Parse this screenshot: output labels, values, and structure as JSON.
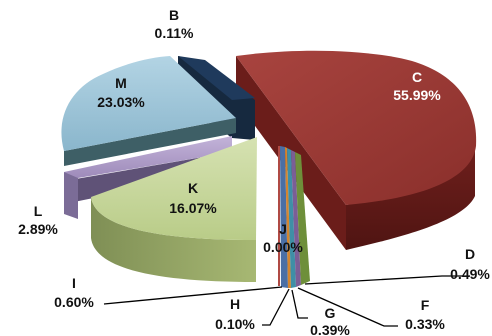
{
  "chart_data": {
    "type": "pie",
    "title": "",
    "style": "3d-exploded",
    "legend": "none",
    "slices": [
      {
        "label": "B",
        "value": 0.11,
        "value_text": "0.11%",
        "color": "#1f3a5c"
      },
      {
        "label": "C",
        "value": 55.99,
        "value_text": "55.99%",
        "color": "#9c3a36"
      },
      {
        "label": "D",
        "value": 0.49,
        "value_text": "0.49%",
        "color": "#6e8f3a"
      },
      {
        "label": "F",
        "value": 0.33,
        "value_text": "0.33%",
        "color": "#7b5e96"
      },
      {
        "label": "G",
        "value": 0.39,
        "value_text": "0.39%",
        "color": "#3f8fa6"
      },
      {
        "label": "H",
        "value": 0.1,
        "value_text": "0.10%",
        "color": "#d4852f"
      },
      {
        "label": "I",
        "value": 0.6,
        "value_text": "0.60%",
        "color": "#4a6fa5"
      },
      {
        "label": "J",
        "value": 0.0,
        "value_text": "0.00%",
        "color": "#b04a44"
      },
      {
        "label": "K",
        "value": 16.07,
        "value_text": "16.07%",
        "color": "#c4d59c"
      },
      {
        "label": "L",
        "value": 2.89,
        "value_text": "2.89%",
        "color": "#b3a2cc"
      },
      {
        "label": "M",
        "value": 23.03,
        "value_text": "23.03%",
        "color": "#9cc3d6"
      }
    ]
  }
}
